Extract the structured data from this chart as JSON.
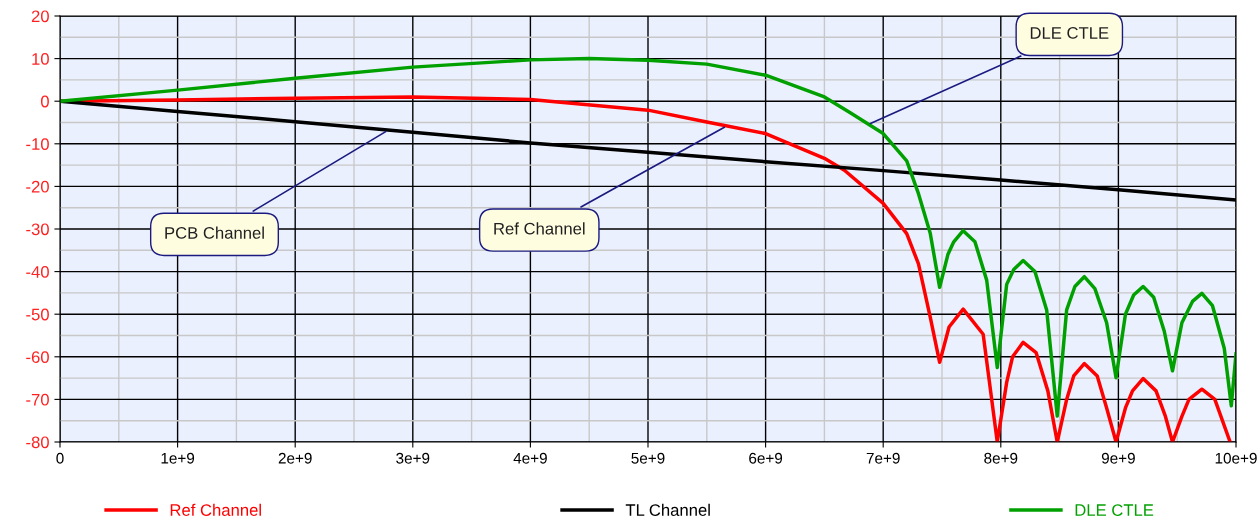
{
  "chart_data": {
    "type": "line",
    "xlim": [
      0,
      10000000000
    ],
    "ylim": [
      -80,
      20
    ],
    "xticks": [
      0,
      {
        "value": 1000000000,
        "label": "1e+9"
      },
      {
        "value": 2000000000,
        "label": "2e+9"
      },
      {
        "value": 3000000000,
        "label": "3e+9"
      },
      {
        "value": 4000000000,
        "label": "4e+9"
      },
      {
        "value": 5000000000,
        "label": "5e+9"
      },
      {
        "value": 6000000000,
        "label": "6e+9"
      },
      {
        "value": 7000000000,
        "label": "7e+9"
      },
      {
        "value": 8000000000,
        "label": "8e+9"
      },
      {
        "value": 9000000000,
        "label": "9e+9"
      },
      {
        "value": 10000000000,
        "label": "10e+9"
      }
    ],
    "yticks": [
      20,
      10,
      0,
      -10,
      -20,
      -30,
      -40,
      -50,
      -60,
      -70,
      -80
    ],
    "grid": true,
    "legend": "bottom",
    "marker": "none",
    "line_style": "solid",
    "series": [
      {
        "name": "Ref Channel",
        "color": "#ff0000",
        "x": [
          0,
          1000000000,
          2000000000,
          3000000000,
          4000000000,
          5000000000,
          5500000000,
          6000000000,
          6500000000,
          6670000000,
          7000000000,
          7200000000,
          7300000000,
          7400000000,
          7480000000,
          7560000000,
          7680000000,
          7850000000,
          7970000000,
          8050000000,
          8100000000,
          8190000000,
          8300000000,
          8400000000,
          8480000000,
          8560000000,
          8620000000,
          8710000000,
          8820000000,
          8900000000,
          8980000000,
          9060000000,
          9120000000,
          9210000000,
          9320000000,
          9400000000,
          9460000000,
          9540000000,
          9600000000,
          9710000000,
          9820000000,
          9950000000
        ],
        "values": [
          0,
          0.3,
          0.7,
          1,
          0.4,
          -2.1,
          -4.9,
          -7.6,
          -13.4,
          -16.2,
          -24,
          -31.1,
          -38.2,
          -50.7,
          -61.3,
          -53,
          -48.8,
          -54.7,
          -80,
          -66,
          -60,
          -56.6,
          -59,
          -68,
          -80,
          -70,
          -64.5,
          -61.6,
          -64.5,
          -72,
          -80,
          -72,
          -68,
          -65.1,
          -68,
          -74,
          -80,
          -74,
          -70,
          -67.6,
          -70,
          -80
        ]
      },
      {
        "name": "TL Channel",
        "color": "#000000",
        "x": [
          0,
          1000000000,
          2000000000,
          3000000000,
          4000000000,
          5000000000,
          6000000000,
          7000000000,
          8000000000,
          9000000000,
          10000000000
        ],
        "values": [
          0,
          -2.4,
          -4.8,
          -7.3,
          -9.8,
          -12,
          -14.2,
          -16.3,
          -18.5,
          -20.8,
          -23.2
        ]
      },
      {
        "name": "DLE CTLE",
        "color": "#00a000",
        "x": [
          0,
          1000000000,
          2000000000,
          3000000000,
          4000000000,
          4500000000,
          5000000000,
          5500000000,
          6000000000,
          6500000000,
          6720000000,
          7000000000,
          7200000000,
          7300000000,
          7400000000,
          7480000000,
          7550000000,
          7600000000,
          7680000000,
          7780000000,
          7880000000,
          7970000000,
          8050000000,
          8110000000,
          8190000000,
          8290000000,
          8390000000,
          8480000000,
          8560000000,
          8630000000,
          8710000000,
          8800000000,
          8900000000,
          8980000000,
          9060000000,
          9130000000,
          9210000000,
          9300000000,
          9390000000,
          9460000000,
          9540000000,
          9630000000,
          9710000000,
          9800000000,
          9900000000,
          9960000000,
          10000000000
        ],
        "values": [
          0,
          2.6,
          5.4,
          8,
          9.7,
          10,
          9.6,
          8.7,
          6.1,
          1,
          -2.7,
          -7.6,
          -14,
          -21.7,
          -31,
          -43.7,
          -36,
          -33,
          -30.4,
          -33,
          -42,
          -62.5,
          -43,
          -39.5,
          -37.4,
          -40,
          -49,
          -73.9,
          -49,
          -43.5,
          -41.2,
          -44,
          -52,
          -64.9,
          -50,
          -45.5,
          -43.5,
          -46,
          -54,
          -63.3,
          -52,
          -47,
          -45.1,
          -48,
          -58,
          -71.5,
          -59.3
        ]
      }
    ],
    "annotations": [
      {
        "text": "PCB Channel",
        "x": 2790000000,
        "y": -6.8
      },
      {
        "text": "Ref Channel",
        "x": 5670000000,
        "y": -5.8
      },
      {
        "text": "DLE CTLE",
        "x": 6870000000,
        "y": -5.5
      }
    ]
  }
}
